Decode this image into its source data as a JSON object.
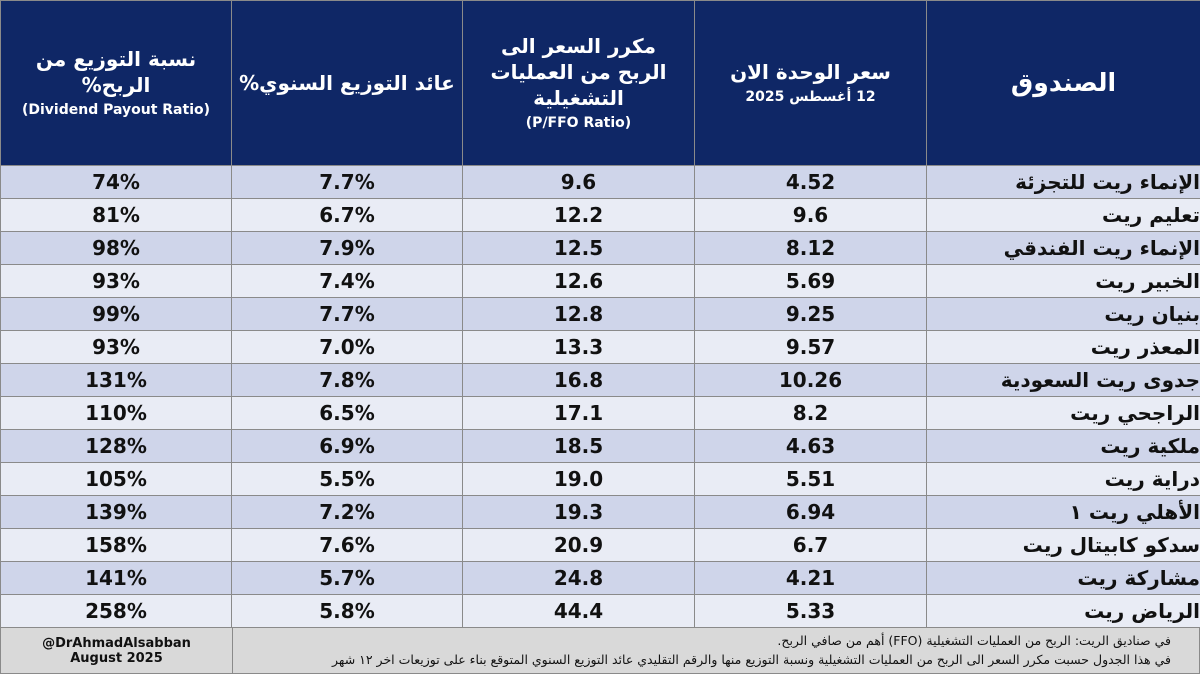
{
  "headers": {
    "fund": "الصندوق",
    "price": "سعر الوحدة الان",
    "price_date": "12 أغسطس 2025",
    "pffo": "مكرر السعر الى الربح من العمليات التشغيلية",
    "pffo_en": "(P/FFO Ratio)",
    "yield": "عائد التوزيع السنوي%",
    "payout": "نسبة التوزيع من الربح%",
    "payout_en": "(Dividend Payout Ratio)"
  },
  "rows": [
    {
      "fund": "الإنماء ريت للتجزئة",
      "price": "4.52",
      "pffo": "9.6",
      "yield": "7.7%",
      "payout": "74%"
    },
    {
      "fund": "تعليم ريت",
      "price": "9.6",
      "pffo": "12.2",
      "yield": "6.7%",
      "payout": "81%"
    },
    {
      "fund": "الإنماء ريت الفندقي",
      "price": "8.12",
      "pffo": "12.5",
      "yield": "7.9%",
      "payout": "98%"
    },
    {
      "fund": "الخبير ريت",
      "price": "5.69",
      "pffo": "12.6",
      "yield": "7.4%",
      "payout": "93%"
    },
    {
      "fund": "بنيان ريت",
      "price": "9.25",
      "pffo": "12.8",
      "yield": "7.7%",
      "payout": "99%"
    },
    {
      "fund": "المعذر ريت",
      "price": "9.57",
      "pffo": "13.3",
      "yield": "7.0%",
      "payout": "93%"
    },
    {
      "fund": "جدوى ريت السعودية",
      "price": "10.26",
      "pffo": "16.8",
      "yield": "7.8%",
      "payout": "131%"
    },
    {
      "fund": "الراجحي ريت",
      "price": "8.2",
      "pffo": "17.1",
      "yield": "6.5%",
      "payout": "110%"
    },
    {
      "fund": "ملكية ريت",
      "price": "4.63",
      "pffo": "18.5",
      "yield": "6.9%",
      "payout": "128%"
    },
    {
      "fund": "دراية ريت",
      "price": "5.51",
      "pffo": "19.0",
      "yield": "5.5%",
      "payout": "105%"
    },
    {
      "fund": "الأهلي ريت ١",
      "price": "6.94",
      "pffo": "19.3",
      "yield": "7.2%",
      "payout": "139%"
    },
    {
      "fund": "سدكو كابيتال ريت",
      "price": "6.7",
      "pffo": "20.9",
      "yield": "7.6%",
      "payout": "158%"
    },
    {
      "fund": "مشاركة ريت",
      "price": "4.21",
      "pffo": "24.8",
      "yield": "5.7%",
      "payout": "141%"
    },
    {
      "fund": "الرياض ريت",
      "price": "5.33",
      "pffo": "44.4",
      "yield": "5.8%",
      "payout": "258%"
    }
  ],
  "footer": {
    "author": "@DrAhmadAlsabban",
    "date": "August 2025",
    "note1": "في صناديق الريت: الربح من العمليات التشغيلية (FFO) أهم من صافي الربح.",
    "note2": "في هذا الجدول حسبت مكرر السعر الى الربح من العمليات التشغيلية ونسبة التوزيع منها والرقم التقليدي عائد التوزيع السنوي المتوقع بناء على توزيعات اخر ١٢ شهر"
  },
  "colors": {
    "header_bg": "#0f2766",
    "row_odd": "#cfd5ea",
    "row_even": "#e9ecf5",
    "footer_bg": "#d9d9d9"
  }
}
